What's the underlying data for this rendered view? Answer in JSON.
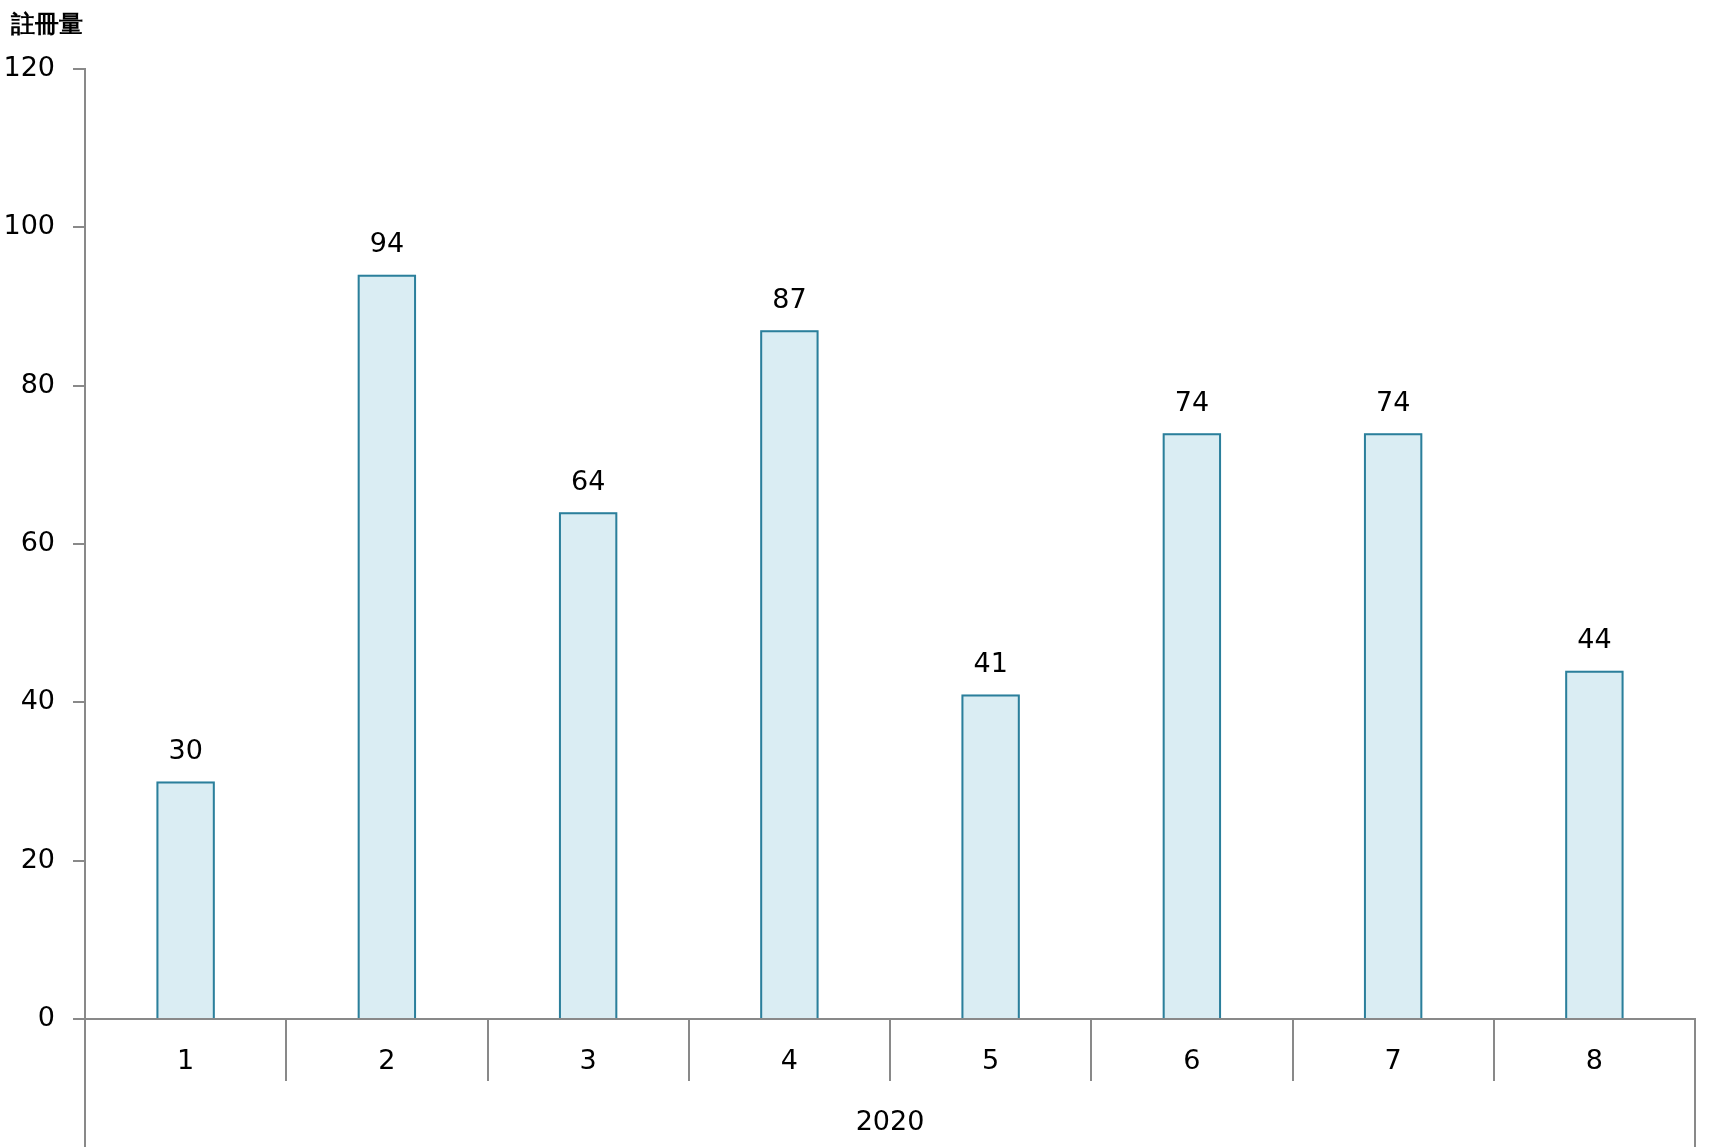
{
  "chart_data": {
    "type": "bar",
    "ylabel": "註冊量",
    "xlabel": "2020",
    "categories": [
      "1",
      "2",
      "3",
      "4",
      "5",
      "6",
      "7",
      "8"
    ],
    "values": [
      30,
      94,
      64,
      87,
      41,
      74,
      74,
      44
    ],
    "color": "#daedf3",
    "ylim": [
      0,
      120
    ],
    "yticks": [
      0,
      20,
      40,
      60,
      80,
      100,
      120
    ],
    "data_labels": true
  }
}
